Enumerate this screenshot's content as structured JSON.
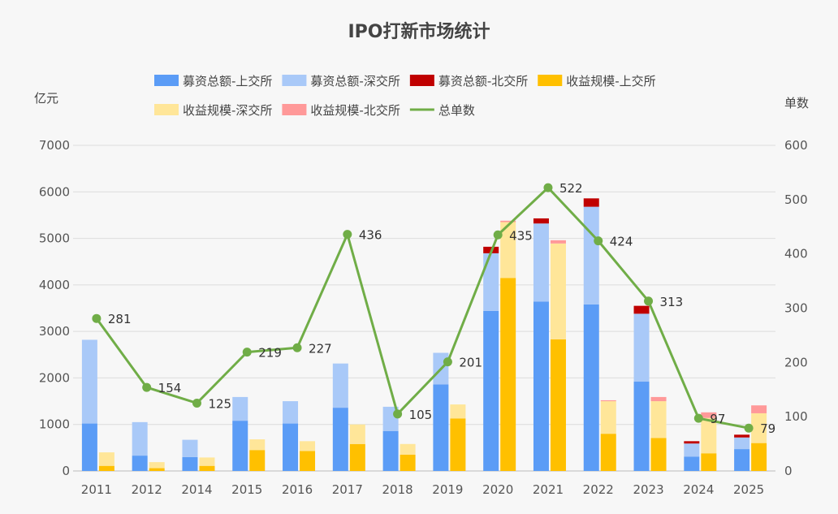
{
  "chart_data": {
    "type": "bar",
    "title": "IPO打新市场统计",
    "ylabel_left": "亿元",
    "ylabel_right": "单数",
    "ylim_left": [
      0,
      7000
    ],
    "ylim_right": [
      0,
      600
    ],
    "yticks_left": [
      "0",
      "1000",
      "2000",
      "3000",
      "4000",
      "5000",
      "6000",
      "7000"
    ],
    "yticks_right": [
      "0",
      "100",
      "200",
      "300",
      "400",
      "500",
      "600"
    ],
    "categories": [
      "2011",
      "2012",
      "2014",
      "2015",
      "2016",
      "2017",
      "2018",
      "2019",
      "2020",
      "2021",
      "2022",
      "2023",
      "2024",
      "2025"
    ],
    "series": [
      {
        "name": "募资总额-上交所",
        "stack": "raise",
        "color": "#5b9cf6",
        "values": [
          1020,
          330,
          300,
          1080,
          1020,
          1360,
          860,
          1860,
          3440,
          3640,
          3580,
          1920,
          310,
          470
        ]
      },
      {
        "name": "募资总额-深交所",
        "stack": "raise",
        "color": "#a9c9f8",
        "values": [
          1800,
          720,
          370,
          510,
          480,
          950,
          520,
          680,
          1240,
          1680,
          2100,
          1460,
          280,
          250
        ]
      },
      {
        "name": "募资总额-北交所",
        "stack": "raise",
        "color": "#c00000",
        "values": [
          0,
          0,
          0,
          0,
          0,
          0,
          0,
          0,
          140,
          110,
          180,
          170,
          50,
          60
        ]
      },
      {
        "name": "收益规模-上交所",
        "stack": "profit",
        "color": "#ffc000",
        "values": [
          110,
          60,
          110,
          450,
          430,
          580,
          350,
          1130,
          4150,
          2830,
          800,
          710,
          380,
          600
        ]
      },
      {
        "name": "收益规模-深交所",
        "stack": "profit",
        "color": "#ffe699",
        "values": [
          290,
          130,
          180,
          230,
          210,
          420,
          230,
          300,
          1200,
          2060,
          700,
          790,
          760,
          640
        ]
      },
      {
        "name": "收益规模-北交所",
        "stack": "profit",
        "color": "#ff9999",
        "values": [
          0,
          0,
          0,
          0,
          0,
          0,
          0,
          0,
          30,
          70,
          20,
          90,
          120,
          170
        ]
      }
    ],
    "line": {
      "name": "总单数",
      "axis": "right",
      "color": "#70ad47",
      "values": [
        281,
        154,
        125,
        219,
        227,
        436,
        105,
        201,
        435,
        522,
        424,
        313,
        97,
        79
      ],
      "labels": [
        "281",
        "154",
        "125",
        "219",
        "227",
        "436",
        "105",
        "201",
        "435",
        "522",
        "424",
        "313",
        "97",
        "79"
      ]
    },
    "legend": [
      "募资总额-上交所",
      "募资总额-深交所",
      "募资总额-北交所",
      "收益规模-上交所",
      "收益规模-深交所",
      "收益规模-北交所",
      "总单数"
    ],
    "legend_position": "top"
  }
}
